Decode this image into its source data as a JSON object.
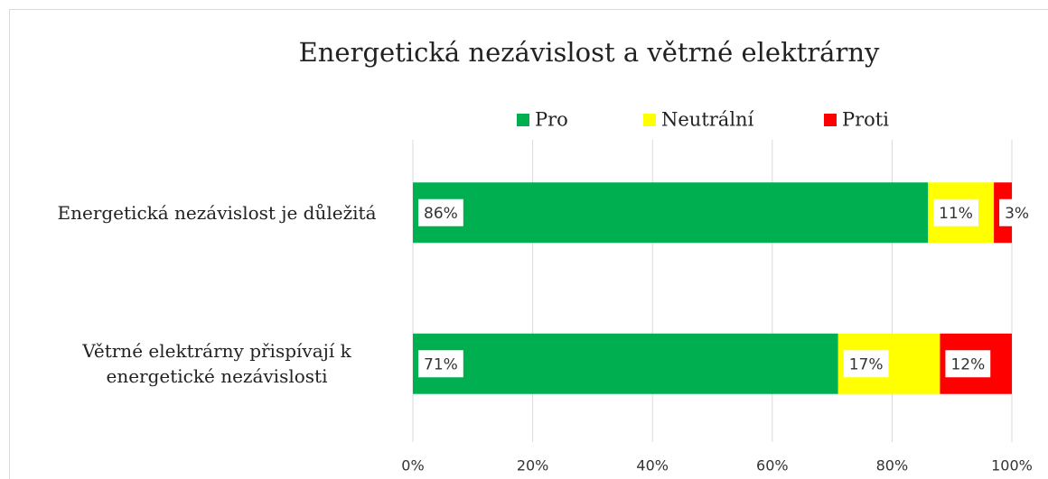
{
  "chart_data": {
    "type": "bar",
    "orientation": "horizontal",
    "stacked": true,
    "title": "Energetická nezávislost a větrné elektrárny",
    "categories": [
      "Energetická nezávislost je důležitá",
      "Větrné elektrárny přispívají k energetické nezávislosti"
    ],
    "series": [
      {
        "name": "Pro",
        "color": "#00b050",
        "values": [
          86,
          71
        ],
        "value_labels": [
          "86%",
          "71%"
        ]
      },
      {
        "name": "Neutrální",
        "color": "#ffff00",
        "values": [
          11,
          17
        ],
        "value_labels": [
          "11%",
          "17%"
        ]
      },
      {
        "name": "Proti",
        "color": "#ff0000",
        "values": [
          3,
          12
        ],
        "value_labels": [
          "3%",
          "12%"
        ]
      }
    ],
    "xlim": [
      0,
      100
    ],
    "xticks": [
      {
        "value": 0,
        "label": "0%"
      },
      {
        "value": 20,
        "label": "20%"
      },
      {
        "value": 40,
        "label": "40%"
      },
      {
        "value": 60,
        "label": "60%"
      },
      {
        "value": 80,
        "label": "80%"
      },
      {
        "value": 100,
        "label": "100%"
      }
    ],
    "grid": true,
    "legend": "top"
  }
}
